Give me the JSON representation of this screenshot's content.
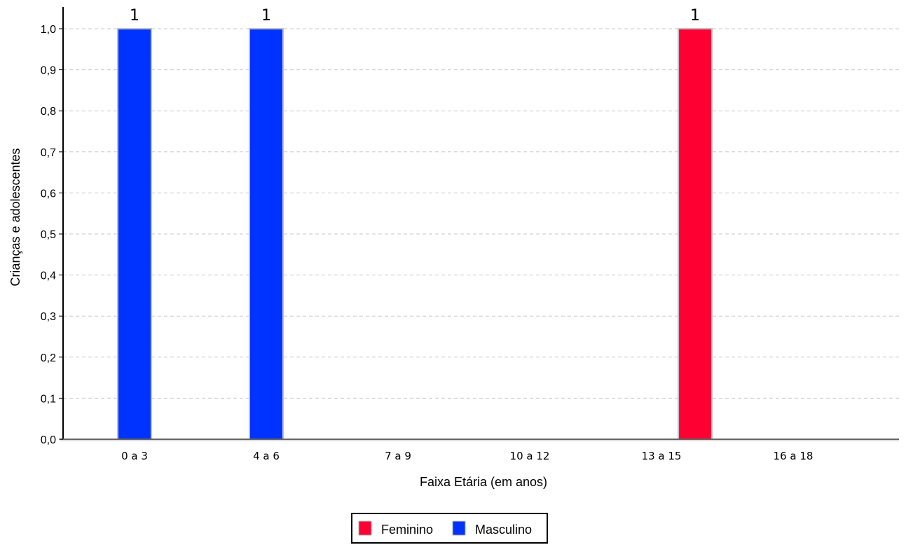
{
  "chart_data": {
    "type": "bar",
    "categories": [
      "0 a 3",
      "4 a 6",
      "7 a 9",
      "10 a 12",
      "13 a 15",
      "16 a 18"
    ],
    "series": [
      {
        "name": "Feminino",
        "color": "#ff0033",
        "values": [
          0,
          0,
          0,
          0,
          1,
          0
        ]
      },
      {
        "name": "Masculino",
        "color": "#0033ff",
        "values": [
          1,
          1,
          0,
          0,
          0,
          0
        ]
      }
    ],
    "title": "",
    "xlabel": "Faixa Etária (em anos)",
    "ylabel": "Crianças e adolescentes",
    "ylim": [
      0,
      1.0
    ],
    "yticks": [
      "0,0",
      "0,1",
      "0,2",
      "0,3",
      "0,4",
      "0,5",
      "0,6",
      "0,7",
      "0,8",
      "0,9",
      "1,0"
    ],
    "data_labels": [
      "1",
      "1",
      "1"
    ],
    "grid": true,
    "legend_position": "bottom-center"
  }
}
